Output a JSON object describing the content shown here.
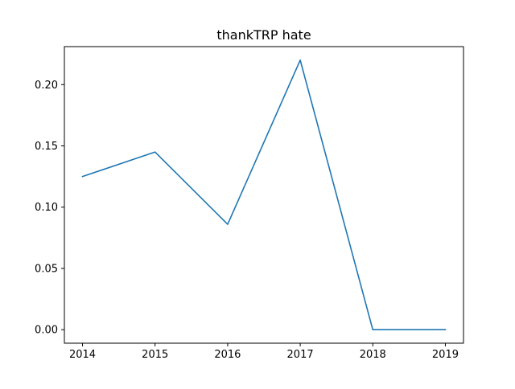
{
  "chart_data": {
    "type": "line",
    "title": "thankTRP hate",
    "xlabel": "",
    "ylabel": "",
    "x": [
      2014,
      2015,
      2016,
      2017,
      2018,
      2019
    ],
    "series": [
      {
        "values": [
          0.125,
          0.145,
          0.086,
          0.22,
          0.0,
          0.0
        ],
        "color": "#1f77b4"
      }
    ],
    "xlim": [
      2013.75,
      2019.25
    ],
    "ylim": [
      -0.011,
      0.231
    ],
    "xticks": [
      2014,
      2015,
      2016,
      2017,
      2018,
      2019
    ],
    "xtick_labels": [
      "2014",
      "2015",
      "2016",
      "2017",
      "2018",
      "2019"
    ],
    "yticks": [
      0.0,
      0.05,
      0.1,
      0.15,
      0.2
    ],
    "ytick_labels": [
      "0.00",
      "0.05",
      "0.10",
      "0.15",
      "0.20"
    ],
    "grid": false,
    "legend": "none"
  }
}
